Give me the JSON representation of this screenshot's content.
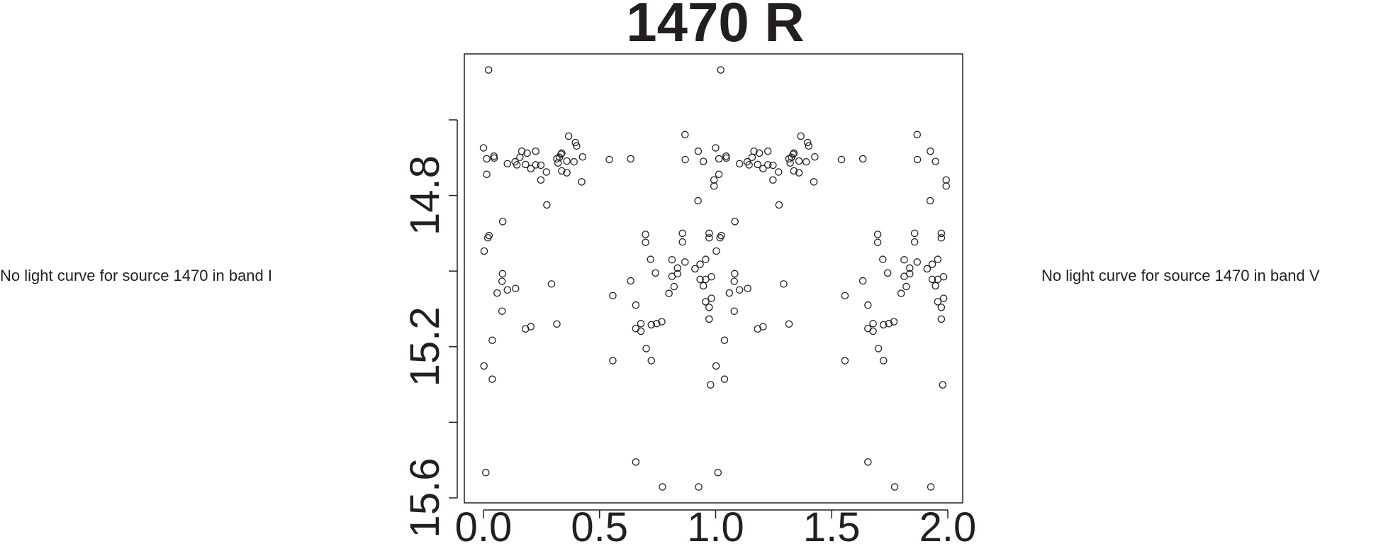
{
  "side_notes": {
    "left": "No light curve for source 1470 in band I",
    "right": "No light curve for source 1470 in band V"
  },
  "chart_data": {
    "type": "scatter",
    "title": "1470 R",
    "xlabel": "",
    "ylabel": "",
    "xlim": [
      -0.08,
      2.08
    ],
    "ylim": [
      15.615,
      14.425
    ],
    "y_inverted": true,
    "x_ticks": [
      "0.0",
      "0.5",
      "1.0",
      "1.5",
      "2.0"
    ],
    "x_tick_values": [
      0,
      0.5,
      1,
      1.5,
      2
    ],
    "y_tick_values": [
      14.6,
      14.8,
      15.0,
      15.2,
      15.4,
      15.6
    ],
    "y_tick_labels": [
      "",
      "14.8",
      "",
      "15.2",
      "",
      "15.6"
    ],
    "grid": false,
    "marker": "open-circle",
    "marker_color": "#231f20",
    "points": [
      [
        0.022,
        14.468
      ],
      [
        0.0,
        14.674
      ],
      [
        0.014,
        14.703
      ],
      [
        0.014,
        14.744
      ],
      [
        0.045,
        14.696
      ],
      [
        0.046,
        14.701
      ],
      [
        0.103,
        14.716
      ],
      [
        0.136,
        14.711
      ],
      [
        0.144,
        14.719
      ],
      [
        0.157,
        14.699
      ],
      [
        0.165,
        14.683
      ],
      [
        0.188,
        14.688
      ],
      [
        0.181,
        14.718
      ],
      [
        0.204,
        14.729
      ],
      [
        0.225,
        14.683
      ],
      [
        0.225,
        14.719
      ],
      [
        0.247,
        14.72
      ],
      [
        0.247,
        14.759
      ],
      [
        0.271,
        14.738
      ],
      [
        0.273,
        14.825
      ],
      [
        0.316,
        14.703
      ],
      [
        0.321,
        14.714
      ],
      [
        0.327,
        14.699
      ],
      [
        0.334,
        14.691
      ],
      [
        0.337,
        14.688
      ],
      [
        0.337,
        14.735
      ],
      [
        0.359,
        14.709
      ],
      [
        0.359,
        14.74
      ],
      [
        0.367,
        14.643
      ],
      [
        0.39,
        14.711
      ],
      [
        0.396,
        14.66
      ],
      [
        0.401,
        14.669
      ],
      [
        0.427,
        14.698
      ],
      [
        0.423,
        14.764
      ],
      [
        0.542,
        14.705
      ],
      [
        0.634,
        14.703
      ],
      [
        0.868,
        14.639
      ],
      [
        0.869,
        14.705
      ],
      [
        0.925,
        14.683
      ],
      [
        0.947,
        14.71
      ],
      [
        0.924,
        14.814
      ],
      [
        0.993,
        14.759
      ],
      [
        0.993,
        14.775
      ],
      [
        0.083,
        14.869
      ],
      [
        0.024,
        14.906
      ],
      [
        0.019,
        14.912
      ],
      [
        0.003,
        14.947
      ],
      [
        0.082,
        15.007
      ],
      [
        0.08,
        15.027
      ],
      [
        0.059,
        15.058
      ],
      [
        0.103,
        15.05
      ],
      [
        0.138,
        15.046
      ],
      [
        0.08,
        15.106
      ],
      [
        0.038,
        15.183
      ],
      [
        0.181,
        15.153
      ],
      [
        0.204,
        15.147
      ],
      [
        0.293,
        15.034
      ],
      [
        0.316,
        15.14
      ],
      [
        0.002,
        15.251
      ],
      [
        0.038,
        15.286
      ],
      [
        0.01,
        15.533
      ],
      [
        0.557,
        15.065
      ],
      [
        0.557,
        15.237
      ],
      [
        0.634,
        15.026
      ],
      [
        0.656,
        15.09
      ],
      [
        0.656,
        15.152
      ],
      [
        0.678,
        15.139
      ],
      [
        0.678,
        15.159
      ],
      [
        0.698,
        14.903
      ],
      [
        0.698,
        14.924
      ],
      [
        0.72,
        14.969
      ],
      [
        0.723,
        15.142
      ],
      [
        0.746,
        15.139
      ],
      [
        0.768,
        15.134
      ],
      [
        0.741,
        15.005
      ],
      [
        0.701,
        15.205
      ],
      [
        0.723,
        15.237
      ],
      [
        0.656,
        15.505
      ],
      [
        0.771,
        15.571
      ],
      [
        0.812,
        14.97
      ],
      [
        0.812,
        15.014
      ],
      [
        0.821,
        15.041
      ],
      [
        0.799,
        15.059
      ],
      [
        0.836,
        14.992
      ],
      [
        0.836,
        15.007
      ],
      [
        0.857,
        14.9
      ],
      [
        0.857,
        14.923
      ],
      [
        0.868,
        14.976
      ],
      [
        0.911,
        14.994
      ],
      [
        0.933,
        14.982
      ],
      [
        0.957,
        14.969
      ],
      [
        0.933,
        15.022
      ],
      [
        0.957,
        15.022
      ],
      [
        0.947,
        15.039
      ],
      [
        0.982,
        15.015
      ],
      [
        0.982,
        15.072
      ],
      [
        0.957,
        15.081
      ],
      [
        0.972,
        15.096
      ],
      [
        0.972,
        15.127
      ],
      [
        0.972,
        14.9
      ],
      [
        0.972,
        14.912
      ],
      [
        0.978,
        15.301
      ],
      [
        0.927,
        15.571
      ],
      [
        1.022,
        14.468
      ],
      [
        1.0,
        14.674
      ],
      [
        1.014,
        14.703
      ],
      [
        1.014,
        14.744
      ],
      [
        1.045,
        14.696
      ],
      [
        1.046,
        14.701
      ],
      [
        1.103,
        14.716
      ],
      [
        1.136,
        14.711
      ],
      [
        1.144,
        14.719
      ],
      [
        1.157,
        14.699
      ],
      [
        1.165,
        14.683
      ],
      [
        1.188,
        14.688
      ],
      [
        1.181,
        14.718
      ],
      [
        1.204,
        14.729
      ],
      [
        1.225,
        14.683
      ],
      [
        1.225,
        14.719
      ],
      [
        1.247,
        14.72
      ],
      [
        1.247,
        14.759
      ],
      [
        1.271,
        14.738
      ],
      [
        1.273,
        14.825
      ],
      [
        1.316,
        14.703
      ],
      [
        1.321,
        14.714
      ],
      [
        1.327,
        14.699
      ],
      [
        1.334,
        14.691
      ],
      [
        1.337,
        14.688
      ],
      [
        1.337,
        14.735
      ],
      [
        1.359,
        14.709
      ],
      [
        1.359,
        14.74
      ],
      [
        1.367,
        14.643
      ],
      [
        1.39,
        14.711
      ],
      [
        1.396,
        14.66
      ],
      [
        1.401,
        14.669
      ],
      [
        1.427,
        14.698
      ],
      [
        1.423,
        14.764
      ],
      [
        1.542,
        14.705
      ],
      [
        1.634,
        14.703
      ],
      [
        1.868,
        14.639
      ],
      [
        1.869,
        14.705
      ],
      [
        1.925,
        14.683
      ],
      [
        1.947,
        14.71
      ],
      [
        1.924,
        14.814
      ],
      [
        1.993,
        14.759
      ],
      [
        1.993,
        14.775
      ],
      [
        1.083,
        14.869
      ],
      [
        1.024,
        14.906
      ],
      [
        1.019,
        14.912
      ],
      [
        1.003,
        14.947
      ],
      [
        1.082,
        15.007
      ],
      [
        1.08,
        15.027
      ],
      [
        1.059,
        15.058
      ],
      [
        1.103,
        15.05
      ],
      [
        1.138,
        15.046
      ],
      [
        1.08,
        15.106
      ],
      [
        1.038,
        15.183
      ],
      [
        1.181,
        15.153
      ],
      [
        1.204,
        15.147
      ],
      [
        1.293,
        15.034
      ],
      [
        1.316,
        15.14
      ],
      [
        1.002,
        15.251
      ],
      [
        1.038,
        15.286
      ],
      [
        1.01,
        15.533
      ],
      [
        1.557,
        15.065
      ],
      [
        1.557,
        15.237
      ],
      [
        1.634,
        15.026
      ],
      [
        1.656,
        15.09
      ],
      [
        1.656,
        15.152
      ],
      [
        1.678,
        15.139
      ],
      [
        1.678,
        15.159
      ],
      [
        1.698,
        14.903
      ],
      [
        1.698,
        14.924
      ],
      [
        1.72,
        14.969
      ],
      [
        1.723,
        15.142
      ],
      [
        1.746,
        15.139
      ],
      [
        1.768,
        15.134
      ],
      [
        1.741,
        15.005
      ],
      [
        1.701,
        15.205
      ],
      [
        1.723,
        15.237
      ],
      [
        1.656,
        15.505
      ],
      [
        1.771,
        15.571
      ],
      [
        1.812,
        14.97
      ],
      [
        1.812,
        15.014
      ],
      [
        1.821,
        15.041
      ],
      [
        1.799,
        15.059
      ],
      [
        1.836,
        14.992
      ],
      [
        1.836,
        15.007
      ],
      [
        1.857,
        14.9
      ],
      [
        1.857,
        14.923
      ],
      [
        1.868,
        14.976
      ],
      [
        1.911,
        14.994
      ],
      [
        1.933,
        14.982
      ],
      [
        1.957,
        14.969
      ],
      [
        1.933,
        15.022
      ],
      [
        1.957,
        15.022
      ],
      [
        1.947,
        15.039
      ],
      [
        1.982,
        15.015
      ],
      [
        1.982,
        15.072
      ],
      [
        1.957,
        15.081
      ],
      [
        1.972,
        15.096
      ],
      [
        1.972,
        15.127
      ],
      [
        1.972,
        14.9
      ],
      [
        1.972,
        14.912
      ],
      [
        1.978,
        15.301
      ],
      [
        1.927,
        15.571
      ]
    ]
  }
}
